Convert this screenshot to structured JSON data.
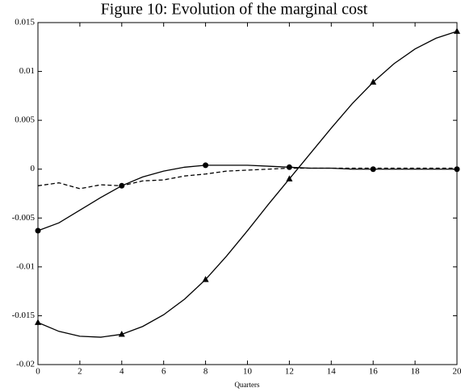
{
  "chart_data": {
    "type": "line",
    "title": "Figure 10: Evolution of the marginal cost",
    "x_label": "Quarters",
    "x": [
      0,
      1,
      2,
      3,
      4,
      5,
      6,
      7,
      8,
      9,
      10,
      11,
      12,
      13,
      14,
      15,
      16,
      17,
      18,
      19,
      20
    ],
    "series": [
      {
        "color": "#000000",
        "dash": false,
        "marker": "circle",
        "marker_every": 4,
        "values": [
          -0.0063,
          -0.0055,
          -0.0042,
          -0.0029,
          -0.0017,
          -0.0008,
          -0.0002,
          0.0002,
          0.0004,
          0.0004,
          0.0004,
          0.0003,
          0.0002,
          0.0001,
          0.0001,
          0.0,
          0.0,
          0.0,
          0.0,
          0.0,
          0.0
        ]
      },
      {
        "color": "#000000",
        "dash": true,
        "marker": "none",
        "marker_every": 4,
        "values": [
          -0.0017,
          -0.0014,
          -0.002,
          -0.0016,
          -0.0017,
          -0.0012,
          -0.0011,
          -0.0007,
          -0.0005,
          -0.0002,
          -0.0001,
          0.0,
          0.0001,
          0.0001,
          0.0001,
          0.0001,
          0.0001,
          0.0001,
          0.0001,
          0.0001,
          0.0001
        ]
      },
      {
        "color": "#000000",
        "dash": false,
        "marker": "triangle",
        "marker_every": 4,
        "values": [
          -0.0157,
          -0.0166,
          -0.0171,
          -0.0172,
          -0.0169,
          -0.0161,
          -0.0149,
          -0.0133,
          -0.0113,
          -0.0089,
          -0.0063,
          -0.0036,
          -0.001,
          0.0016,
          0.0042,
          0.0067,
          0.0089,
          0.0108,
          0.0123,
          0.0134,
          0.0141
        ]
      }
    ],
    "xlim": [
      0,
      20
    ],
    "xticks": [
      0,
      2,
      4,
      6,
      8,
      10,
      12,
      14,
      16,
      18,
      20
    ],
    "ylim": [
      -0.02,
      0.015
    ],
    "yticks": [
      -0.02,
      -0.015,
      -0.01,
      -0.005,
      0,
      0.005,
      0.01,
      0.015
    ],
    "grid": false
  }
}
